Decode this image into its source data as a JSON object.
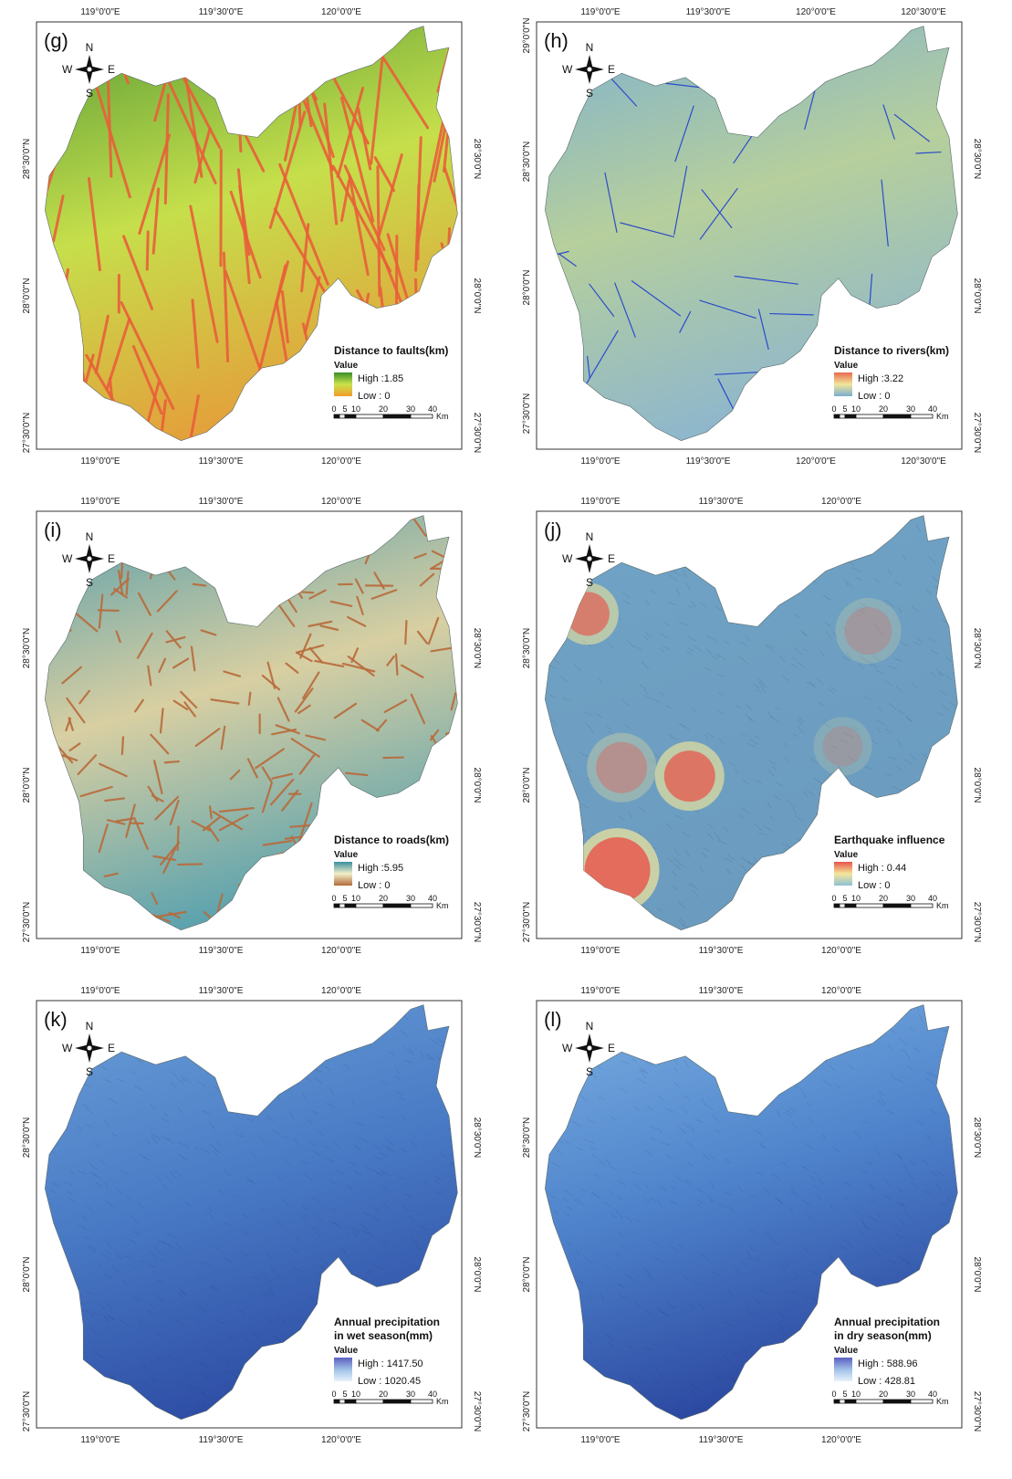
{
  "panels": [
    {
      "letter": "(g)",
      "title_lines": [
        "Distance to faults(km)"
      ],
      "value_head": "Value",
      "high": "High :1.85",
      "low": "Low : 0",
      "ramp": [
        "#3a8f2a",
        "#c8e34a",
        "#f39b2c"
      ],
      "top_ticks": [
        "119°0'0\"E",
        "119°30'0\"E",
        "120°0'0\"E"
      ],
      "bottom_ticks": [
        "119°0'0\"E",
        "119°30'0\"E",
        "120°0'0\"E"
      ],
      "left_ticks": [
        "28°30'0\"N",
        "28°0'0\"N",
        "27°30'0\"N"
      ],
      "right_ticks": [
        "28°30'0\"N",
        "28°0'0\"N",
        "27°30'0\"N"
      ],
      "scale": {
        "labels": [
          "0",
          "5",
          "10",
          "20",
          "30",
          "40"
        ],
        "unit": "Km"
      },
      "compass": {
        "n": "N",
        "s": "S",
        "e": "E",
        "w": "W"
      },
      "fill_top": "#5c9e38",
      "fill_mid": "#c6df4b",
      "fill_bot": "#e3a13b",
      "line_color": "#e8603a"
    },
    {
      "letter": "(h)",
      "title_lines": [
        "Distance to rivers(km)"
      ],
      "value_head": "Value",
      "high": "High :3.22",
      "low": "Low : 0",
      "ramp": [
        "#e86b4f",
        "#f1e69a",
        "#78aed0"
      ],
      "top_ticks": [
        "119°0'0\"E",
        "119°30'0\"E",
        "120°0'0\"E",
        "120°30'0\"E"
      ],
      "bottom_ticks": [
        "119°0'0\"E",
        "119°30'0\"E",
        "120°0'0\"E",
        "120°30'0\"E"
      ],
      "left_ticks": [
        "29°0'0\"N",
        "28°30'0\"N",
        "28°0'0\"N",
        "27°30'0\"N"
      ],
      "right_ticks": [
        "28°30'0\"N",
        "28°0'0\"N",
        "27°30'0\"N"
      ],
      "scale": {
        "labels": [
          "0",
          "5",
          "10",
          "20",
          "30",
          "40"
        ],
        "unit": "Km"
      },
      "compass": {
        "n": "N",
        "s": "S",
        "e": "E",
        "w": "W"
      },
      "fill_top": "#7fb1cf",
      "fill_mid": "#b6cf9c",
      "fill_bot": "#8fb7cc",
      "line_color": "#1e3fcf"
    },
    {
      "letter": "(i)",
      "title_lines": [
        "Distance to roads(km)"
      ],
      "value_head": "Value",
      "high": "High :5.95",
      "low": "Low : 0",
      "ramp": [
        "#3b8fa0",
        "#f1efc8",
        "#b36a3a"
      ],
      "top_ticks": [
        "119°0'0\"E",
        "119°30'0\"E",
        "120°0'0\"E"
      ],
      "bottom_ticks": [
        "119°0'0\"E",
        "119°30'0\"E",
        "120°0'0\"E"
      ],
      "left_ticks": [
        "28°30'0\"N",
        "28°0'0\"N",
        "27°30'0\"N"
      ],
      "right_ticks": [
        "28°30'0\"N",
        "28°0'0\"N",
        "27°30'0\"N"
      ],
      "scale": {
        "labels": [
          "0",
          "5",
          "10",
          "20",
          "30",
          "40"
        ],
        "unit": "Km"
      },
      "compass": {
        "n": "N",
        "s": "S",
        "e": "E",
        "w": "W"
      },
      "fill_top": "#5a9fab",
      "fill_mid": "#d8cfa2",
      "fill_bot": "#5da3ae",
      "line_color": "#b86b3b"
    },
    {
      "letter": "(j)",
      "title_lines": [
        "Earthquake influence"
      ],
      "value_head": "Value",
      "high": "High : 0.44",
      "low": "Low : 0",
      "ramp": [
        "#e8534a",
        "#f3e79a",
        "#8fc0d6"
      ],
      "top_ticks": [
        "119°0'0\"E",
        "119°30'0\"E",
        "120°0'0\"E"
      ],
      "bottom_ticks": [
        "119°0'0\"E",
        "119°30'0\"E",
        "120°0'0\"E"
      ],
      "left_ticks": [
        "28°30'0\"N",
        "28°0'0\"N",
        "27°30'0\"N"
      ],
      "right_ticks": [
        "28°30'0\"N",
        "28°0'0\"N",
        "27°30'0\"N"
      ],
      "scale": {
        "labels": [
          "0",
          "5",
          "10",
          "20",
          "30",
          "40"
        ],
        "unit": "Km"
      },
      "compass": {
        "n": "N",
        "s": "S",
        "e": "E",
        "w": "W"
      },
      "fill_top": "#6fa3c6",
      "fill_mid": "#6e9fc2",
      "fill_bot": "#6b9cc0",
      "line_color": "none"
    },
    {
      "letter": "(k)",
      "title_lines": [
        "Annual precipitation",
        "in wet season(mm)"
      ],
      "value_head": "Value",
      "high": "High : 1417.50",
      "low": "Low : 1020.45",
      "ramp": [
        "#5b5fc0",
        "#9fc0e8",
        "#e8f3fb"
      ],
      "top_ticks": [
        "119°0'0\"E",
        "119°30'0\"E",
        "120°0'0\"E"
      ],
      "bottom_ticks": [
        "119°0'0\"E",
        "119°30'0\"E",
        "120°0'0\"E"
      ],
      "left_ticks": [
        "28°30'0\"N",
        "28°0'0\"N",
        "27°30'0\"N"
      ],
      "right_ticks": [
        "28°30'0\"N",
        "28°0'0\"N",
        "27°30'0\"N"
      ],
      "scale": {
        "labels": [
          "0",
          "5",
          "10",
          "20",
          "30",
          "40"
        ],
        "unit": "Km"
      },
      "compass": {
        "n": "N",
        "s": "S",
        "e": "E",
        "w": "W"
      },
      "fill_top": "#6a9ed6",
      "fill_mid": "#4a7cc6",
      "fill_bot": "#2f4fa6",
      "line_color": "none"
    },
    {
      "letter": "(l)",
      "title_lines": [
        "Annual precipitation",
        "in dry season(mm)"
      ],
      "value_head": "Value",
      "high": "High : 588.96",
      "low": "Low : 428.81",
      "ramp": [
        "#5b5fc0",
        "#9fc0e8",
        "#e8f3fb"
      ],
      "top_ticks": [
        "119°0'0\"E",
        "119°30'0\"E",
        "120°0'0\"E"
      ],
      "bottom_ticks": [
        "119°0'0\"E",
        "119°30'0\"E",
        "120°0'0\"E"
      ],
      "left_ticks": [
        "28°30'0\"N",
        "28°0'0\"N",
        "27°30'0\"N"
      ],
      "right_ticks": [
        "28°30'0\"N",
        "28°0'0\"N",
        "27°30'0\"N"
      ],
      "scale": {
        "labels": [
          "0",
          "5",
          "10",
          "20",
          "30",
          "40"
        ],
        "unit": "Km"
      },
      "compass": {
        "n": "N",
        "s": "S",
        "e": "E",
        "w": "W"
      },
      "fill_top": "#7aaee0",
      "fill_mid": "#4f84cc",
      "fill_bot": "#2d4aa2",
      "line_color": "none"
    }
  ]
}
